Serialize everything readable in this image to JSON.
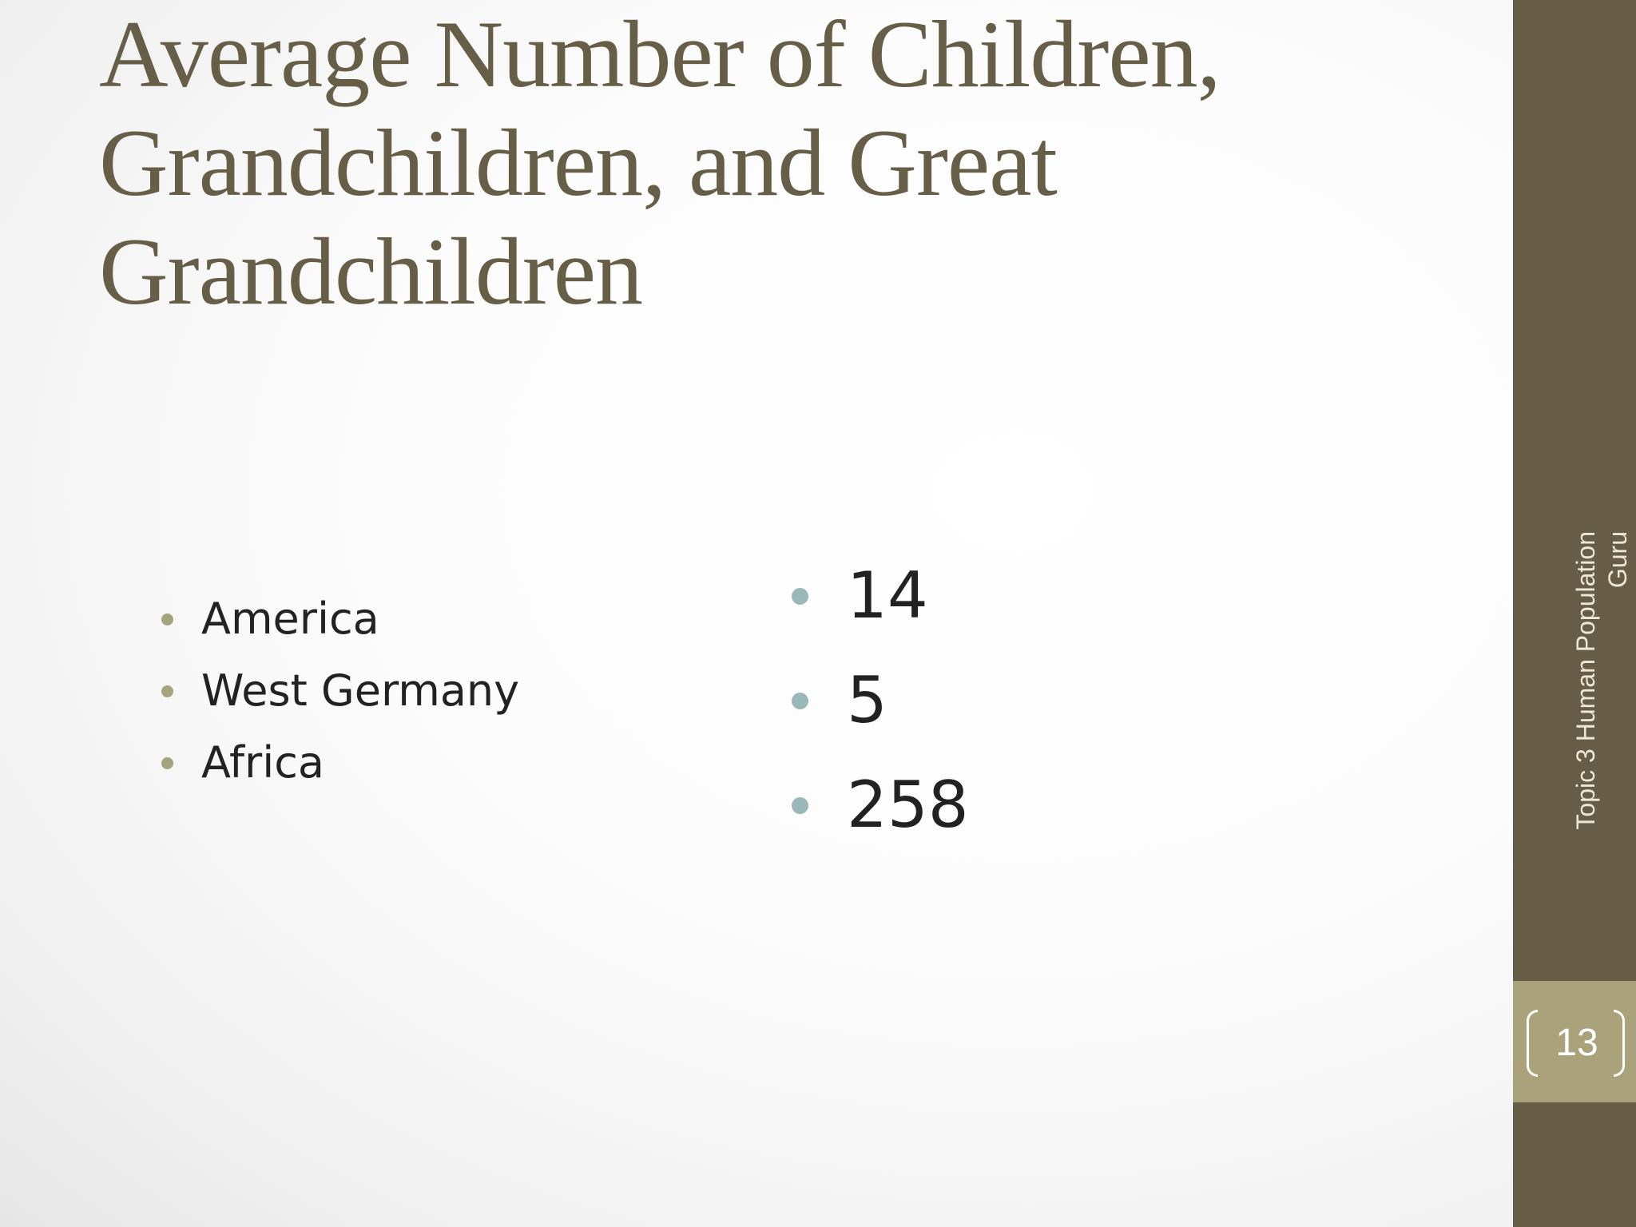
{
  "slide": {
    "title_lines": [
      "Average Number of Children,",
      "Grandchildren, and Great",
      "Grandchildren"
    ],
    "left_items": [
      "America",
      "West Germany",
      "Africa"
    ],
    "right_items": [
      "14",
      "5",
      "258"
    ]
  },
  "sidebar": {
    "footer_line1": "Topic 3 Human Population",
    "footer_line2": "Guru",
    "page_number": "13"
  },
  "colors": {
    "title": "#675e47",
    "sidebar": "#675c45",
    "page_box": "#a9a27a",
    "left_bullet": "#a5a37c",
    "right_bullet": "#9ab8b8"
  }
}
